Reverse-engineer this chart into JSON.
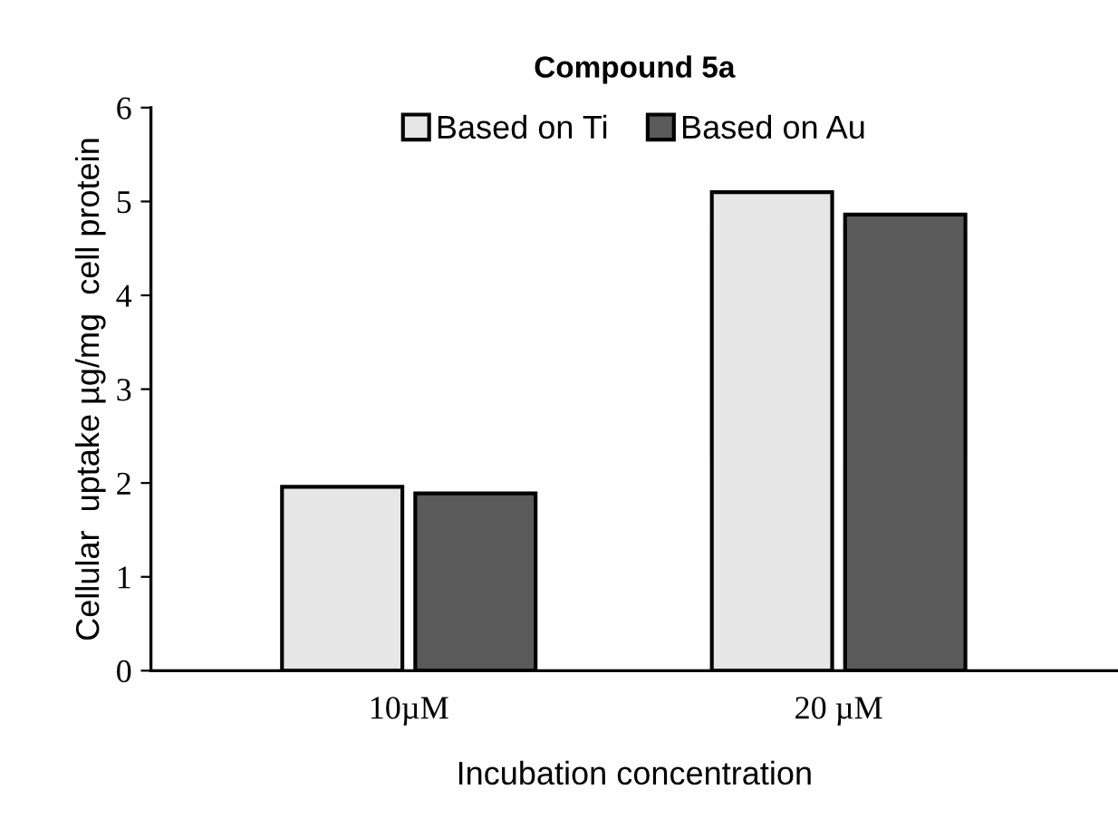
{
  "chart_data": {
    "type": "bar",
    "title": "Compound 5a",
    "xlabel": "Incubation concentration",
    "ylabel": "Cellular  uptake µg/mg  cell protein",
    "categories": [
      "10µM",
      "20 µM"
    ],
    "series": [
      {
        "name": "Based on Ti",
        "color": "#e6e6e6",
        "values": [
          1.96,
          5.1
        ]
      },
      {
        "name": "Based on Au",
        "color": "#5a5a5a",
        "values": [
          1.89,
          4.86
        ]
      }
    ],
    "ylim": [
      0,
      6
    ],
    "yticks": [
      0,
      1,
      2,
      3,
      4,
      5,
      6
    ],
    "grid": false,
    "legend": "top"
  }
}
